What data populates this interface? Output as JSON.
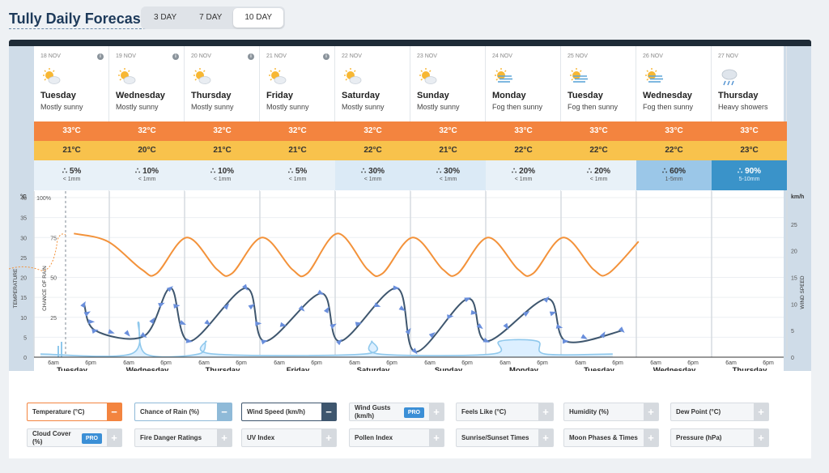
{
  "header": {
    "title": "Tully Daily Forecast",
    "tabs": [
      {
        "label": "3 DAY",
        "active": false
      },
      {
        "label": "7 DAY",
        "active": false
      },
      {
        "label": "10 DAY",
        "active": true
      }
    ]
  },
  "days": [
    {
      "date": "18 NOV",
      "name": "Tuesday",
      "desc": "Mostly sunny",
      "icon": "sun-cloud-icon",
      "max": "33°C",
      "min": "21°C",
      "rain_pct": "5%",
      "rain_amt": "< 1mm"
    },
    {
      "date": "19 NOV",
      "name": "Wednesday",
      "desc": "Mostly sunny",
      "icon": "sun-cloud-icon",
      "max": "32°C",
      "min": "20°C",
      "rain_pct": "10%",
      "rain_amt": "< 1mm"
    },
    {
      "date": "20 NOV",
      "name": "Thursday",
      "desc": "Mostly sunny",
      "icon": "sun-cloud-icon",
      "max": "32°C",
      "min": "21°C",
      "rain_pct": "10%",
      "rain_amt": "< 1mm"
    },
    {
      "date": "21 NOV",
      "name": "Friday",
      "desc": "Mostly sunny",
      "icon": "sun-cloud-icon",
      "max": "32°C",
      "min": "21°C",
      "rain_pct": "5%",
      "rain_amt": "< 1mm"
    },
    {
      "date": "22 NOV",
      "name": "Saturday",
      "desc": "Mostly sunny",
      "icon": "sun-cloud-icon",
      "max": "32°C",
      "min": "22°C",
      "rain_pct": "30%",
      "rain_amt": "< 1mm"
    },
    {
      "date": "23 NOV",
      "name": "Sunday",
      "desc": "Mostly sunny",
      "icon": "sun-cloud-icon",
      "max": "32°C",
      "min": "21°C",
      "rain_pct": "30%",
      "rain_amt": "< 1mm"
    },
    {
      "date": "24 NOV",
      "name": "Monday",
      "desc": "Fog then sunny",
      "icon": "fog-sun-icon",
      "max": "33°C",
      "min": "22°C",
      "rain_pct": "20%",
      "rain_amt": "< 1mm"
    },
    {
      "date": "25 NOV",
      "name": "Tuesday",
      "desc": "Fog then sunny",
      "icon": "fog-sun-icon",
      "max": "33°C",
      "min": "22°C",
      "rain_pct": "20%",
      "rain_amt": "< 1mm"
    },
    {
      "date": "26 NOV",
      "name": "Wednesday",
      "desc": "Fog then sunny",
      "icon": "fog-sun-icon",
      "max": "33°C",
      "min": "22°C",
      "rain_pct": "60%",
      "rain_amt": "1-5mm"
    },
    {
      "date": "27 NOV",
      "name": "Thursday",
      "desc": "Heavy showers",
      "icon": "rain-cloud-icon",
      "max": "33°C",
      "min": "23°C",
      "rain_pct": "90%",
      "rain_amt": "5-10mm"
    }
  ],
  "colors": {
    "temperature": "#f3923a",
    "wind": "#3e566e",
    "wind_arrow": "#6a8fdc",
    "rain": "#8fc8ec",
    "max_temp_bg": "#f3843f",
    "min_temp_bg": "#f8c24c",
    "rain_bg_low": "#e8f1f8",
    "rain_bg_mid": "#dbeaf6",
    "rain_bg_60": "#9bc7e8",
    "rain_bg_90": "#3a93c9"
  },
  "chart_data": {
    "type": "line",
    "axes": {
      "temp_unit": "°C",
      "temp_label": "TEMPERATURE",
      "temp_ticks": [
        0,
        5,
        10,
        15,
        20,
        25,
        30,
        35,
        40
      ],
      "rain_unit": "%",
      "rain_label": "CHANCE OF RAIN",
      "rain_ticks": [
        0,
        25,
        50,
        75,
        100
      ],
      "wind_unit": "km/h",
      "wind_label": "WIND SPEED",
      "wind_ticks": [
        0,
        5,
        10,
        15,
        20,
        25
      ]
    },
    "x_ticks": [
      "6am",
      "6pm"
    ],
    "temperature_series": {
      "name": "Temperature (°C)",
      "min": 20.5,
      "max": 31.5,
      "days": 7.6,
      "values": [
        [
          0.1,
          31
        ],
        [
          0.55,
          29
        ],
        [
          1.0,
          22
        ],
        [
          1.2,
          21
        ],
        [
          1.6,
          30
        ],
        [
          2.0,
          22
        ],
        [
          2.2,
          21
        ],
        [
          2.6,
          30
        ],
        [
          3.0,
          22
        ],
        [
          3.2,
          21
        ],
        [
          3.6,
          31
        ],
        [
          4.0,
          22
        ],
        [
          4.2,
          21
        ],
        [
          4.6,
          30
        ],
        [
          5.0,
          22
        ],
        [
          5.2,
          21
        ],
        [
          5.6,
          30
        ],
        [
          6.0,
          22
        ],
        [
          6.2,
          21
        ],
        [
          6.6,
          30
        ],
        [
          7.0,
          22
        ],
        [
          7.2,
          21
        ],
        [
          7.6,
          29
        ]
      ]
    },
    "wind_series": {
      "name": "Wind Speed (km/h)",
      "values": [
        [
          0.45,
          10
        ],
        [
          0.6,
          5
        ],
        [
          1.25,
          4
        ],
        [
          1.6,
          13
        ],
        [
          1.85,
          3
        ],
        [
          2.6,
          13
        ],
        [
          2.85,
          3
        ],
        [
          3.6,
          12
        ],
        [
          3.85,
          3
        ],
        [
          4.6,
          13
        ],
        [
          4.85,
          1
        ],
        [
          5.55,
          11
        ],
        [
          5.8,
          3
        ],
        [
          6.6,
          11
        ],
        [
          6.85,
          3
        ],
        [
          7.6,
          5
        ]
      ]
    },
    "rain_series": {
      "name": "Chance of Rain (%)",
      "values": [
        [
          0,
          2
        ],
        [
          1.2,
          2
        ],
        [
          1.3,
          22
        ],
        [
          1.4,
          2
        ],
        [
          2.1,
          2
        ],
        [
          2.2,
          10
        ],
        [
          2.3,
          2
        ],
        [
          4.3,
          2
        ],
        [
          4.4,
          10
        ],
        [
          4.5,
          2
        ],
        [
          6.0,
          2
        ],
        [
          6.1,
          10
        ],
        [
          6.6,
          10
        ],
        [
          6.7,
          2
        ],
        [
          7.6,
          2
        ]
      ]
    }
  },
  "legend": [
    {
      "label": "Temperature (°C)",
      "state": "on",
      "kind": "temp"
    },
    {
      "label": "Chance of Rain (%)",
      "state": "on",
      "kind": "rain"
    },
    {
      "label": "Wind Speed (km/h)",
      "state": "on",
      "kind": "wind"
    },
    {
      "label": "Wind Gusts (km/h)",
      "state": "off",
      "pro": "PRO"
    },
    {
      "label": "Feels Like (°C)",
      "state": "off"
    },
    {
      "label": "Humidity (%)",
      "state": "off"
    },
    {
      "label": "Dew Point (°C)",
      "state": "off"
    },
    {
      "label": "Cloud Cover (%)",
      "state": "off",
      "pro": "PRO"
    },
    {
      "label": "Fire Danger Ratings",
      "state": "off"
    },
    {
      "label": "UV Index",
      "state": "off"
    },
    {
      "label": "Pollen Index",
      "state": "off"
    },
    {
      "label": "Sunrise/Sunset Times",
      "state": "off"
    },
    {
      "label": "Moon Phases & Times",
      "state": "off"
    },
    {
      "label": "Pressure (hPa)",
      "state": "off"
    }
  ]
}
